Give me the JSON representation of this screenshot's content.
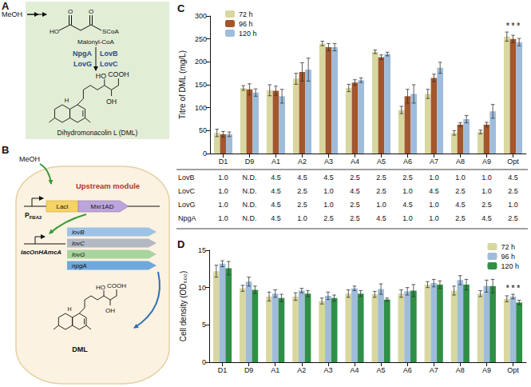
{
  "panel_labels": [
    "A",
    "B",
    "C",
    "D"
  ],
  "panel_a": {
    "feed": "MeOH",
    "precursor": {
      "name": "Malonyl-CoA",
      "atoms": [
        "HO",
        "O",
        "O",
        "SCoA"
      ]
    },
    "enzymes_left": [
      "NpgA",
      "LovG"
    ],
    "enzymes_right": [
      "LovB",
      "LovC"
    ],
    "product": {
      "name": "Dihydromonacolin L (DML)",
      "atoms": [
        "COOH",
        "HO",
        "OH",
        "H"
      ]
    }
  },
  "panel_b": {
    "feed": "MeOH",
    "module": "Upstream module",
    "promoter": {
      "text": "P",
      "subscript": "FBA2"
    },
    "upstream_genes": [
      "LacI",
      "Mxr1AD"
    ],
    "downstream_promoter": "lacOnHAmcA",
    "genes": [
      "lovB",
      "lovC",
      "lovG",
      "npgA"
    ],
    "product": {
      "name": "DML",
      "atoms": [
        "COOH",
        "HO",
        "OH",
        "H"
      ]
    }
  },
  "chart_data": [
    {
      "type": "bar",
      "ylabel": "Titre of DML (mg/L)",
      "categories": [
        "D1",
        "D9",
        "A1",
        "A2",
        "A3",
        "A4",
        "A5",
        "A6",
        "A7",
        "A8",
        "A9",
        "Opt"
      ],
      "series": [
        {
          "name": "72 h",
          "color": "#d8d7a0",
          "values": [
            45,
            143,
            138,
            163,
            240,
            143,
            222,
            95,
            130,
            45,
            47,
            255
          ],
          "errors": [
            8,
            5,
            12,
            12,
            5,
            8,
            4,
            8,
            10,
            5,
            4,
            10
          ]
        },
        {
          "name": "96 h",
          "color": "#a4562c",
          "values": [
            42,
            140,
            137,
            178,
            232,
            155,
            210,
            125,
            165,
            63,
            63,
            250
          ],
          "errors": [
            6,
            12,
            10,
            20,
            8,
            6,
            5,
            15,
            8,
            4,
            5,
            8
          ]
        },
        {
          "name": "120 h",
          "color": "#9fbcdb",
          "values": [
            42,
            133,
            125,
            183,
            232,
            160,
            217,
            130,
            187,
            75,
            92,
            243
          ],
          "errors": [
            5,
            8,
            15,
            25,
            8,
            5,
            4,
            20,
            12,
            8,
            15,
            8
          ]
        }
      ],
      "ylim": [
        0,
        300
      ],
      "yticks": [
        0,
        50,
        100,
        150,
        200,
        250,
        300
      ],
      "grid": false,
      "legend": "upper left",
      "annotations": [
        {
          "text": "* * *",
          "category": "Opt"
        }
      ]
    },
    {
      "type": "bar",
      "ylabel": "Cell density (OD₆₀₀)",
      "categories": [
        "D1",
        "D9",
        "A1",
        "A2",
        "A3",
        "A4",
        "A5",
        "A6",
        "A7",
        "A8",
        "A9",
        "Opt"
      ],
      "series": [
        {
          "name": "72 h",
          "color": "#d8d7a0",
          "values": [
            12.2,
            9.9,
            8.8,
            8.8,
            8.2,
            9.2,
            9.1,
            9.2,
            10.4,
            9.6,
            9.2,
            8.5
          ],
          "errors": [
            0.8,
            0.4,
            0.6,
            0.5,
            0.4,
            0.5,
            0.4,
            0.5,
            0.4,
            0.6,
            0.4,
            0.4
          ]
        },
        {
          "name": "96 h",
          "color": "#9fbcdb",
          "values": [
            13.2,
            10.8,
            9.2,
            9.6,
            8.9,
            9.9,
            9.8,
            9.5,
            10.6,
            11.0,
            10.2,
            8.8
          ],
          "errors": [
            0.4,
            0.6,
            0.5,
            0.3,
            0.5,
            0.3,
            0.7,
            0.5,
            0.5,
            0.6,
            0.8,
            0.3
          ]
        },
        {
          "name": "120 h",
          "color": "#2f8f46",
          "values": [
            12.6,
            9.7,
            8.6,
            9.2,
            8.6,
            9.2,
            8.4,
            9.6,
            10.4,
            10.4,
            10.2,
            8.0
          ],
          "errors": [
            0.9,
            0.5,
            0.5,
            0.4,
            0.4,
            0.4,
            0.2,
            0.8,
            0.5,
            0.7,
            0.9,
            0.3
          ]
        }
      ],
      "ylim": [
        0,
        15
      ],
      "yticks": [
        0,
        5,
        10,
        15
      ],
      "grid": false,
      "legend": "upper right",
      "annotations": [
        {
          "text": "* * *",
          "category": "Opt"
        }
      ]
    }
  ],
  "table": {
    "rows": [
      {
        "label": "LovB",
        "cells": [
          "1.0",
          "N.D.",
          "4.5",
          "4.5",
          "4.5",
          "2.5",
          "2.5",
          "2.5",
          "1.0",
          "1.0",
          "1.0",
          "4.5"
        ]
      },
      {
        "label": "LovC",
        "cells": [
          "1.0",
          "N.D.",
          "4.5",
          "2.5",
          "1.0",
          "4.5",
          "2.5",
          "1.0",
          "4.5",
          "2.5",
          "1.0",
          "2.5"
        ]
      },
      {
        "label": "LovG",
        "cells": [
          "1.0",
          "N.D.",
          "4.5",
          "2.5",
          "1.0",
          "2.5",
          "1.0",
          "4.5",
          "1.0",
          "4.5",
          "2.5",
          "1.0"
        ]
      },
      {
        "label": "NpgA",
        "cells": [
          "1.0",
          "N.D.",
          "4.5",
          "1.0",
          "2.5",
          "2.5",
          "4.5",
          "1.0",
          "1.0",
          "2.5",
          "4.5",
          "2.5"
        ]
      }
    ]
  }
}
